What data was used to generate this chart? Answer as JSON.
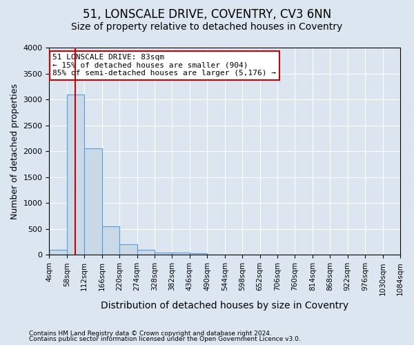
{
  "title_line1": "51, LONSCALE DRIVE, COVENTRY, CV3 6NN",
  "title_line2": "Size of property relative to detached houses in Coventry",
  "xlabel": "Distribution of detached houses by size in Coventry",
  "ylabel": "Number of detached properties",
  "footer_line1": "Contains HM Land Registry data © Crown copyright and database right 2024.",
  "footer_line2": "Contains public sector information licensed under the Open Government Licence v3.0.",
  "bin_edges": [
    4,
    58,
    112,
    166,
    220,
    274,
    328,
    382,
    436,
    490,
    544,
    598,
    652,
    706,
    760,
    814,
    868,
    922,
    976,
    1030,
    1084
  ],
  "bar_heights": [
    100,
    3100,
    2050,
    550,
    200,
    100,
    50,
    50,
    25,
    0,
    0,
    0,
    0,
    0,
    0,
    0,
    0,
    0,
    0,
    0
  ],
  "bar_color": "#c9d9e8",
  "bar_edge_color": "#5b9bd5",
  "property_size": 83,
  "property_line_color": "#cc0000",
  "annotation_line1": "51 LONSCALE DRIVE: 83sqm",
  "annotation_line2": "← 15% of detached houses are smaller (904)",
  "annotation_line3": "85% of semi-detached houses are larger (5,176) →",
  "annotation_box_color": "#ffffff",
  "annotation_box_edge_color": "#cc0000",
  "ylim": [
    0,
    4000
  ],
  "yticks": [
    0,
    500,
    1000,
    1500,
    2000,
    2500,
    3000,
    3500,
    4000
  ],
  "background_color": "#dce6f1",
  "plot_background_color": "#dce6f1",
  "grid_color": "#ffffff",
  "title_fontsize": 12,
  "subtitle_fontsize": 10
}
